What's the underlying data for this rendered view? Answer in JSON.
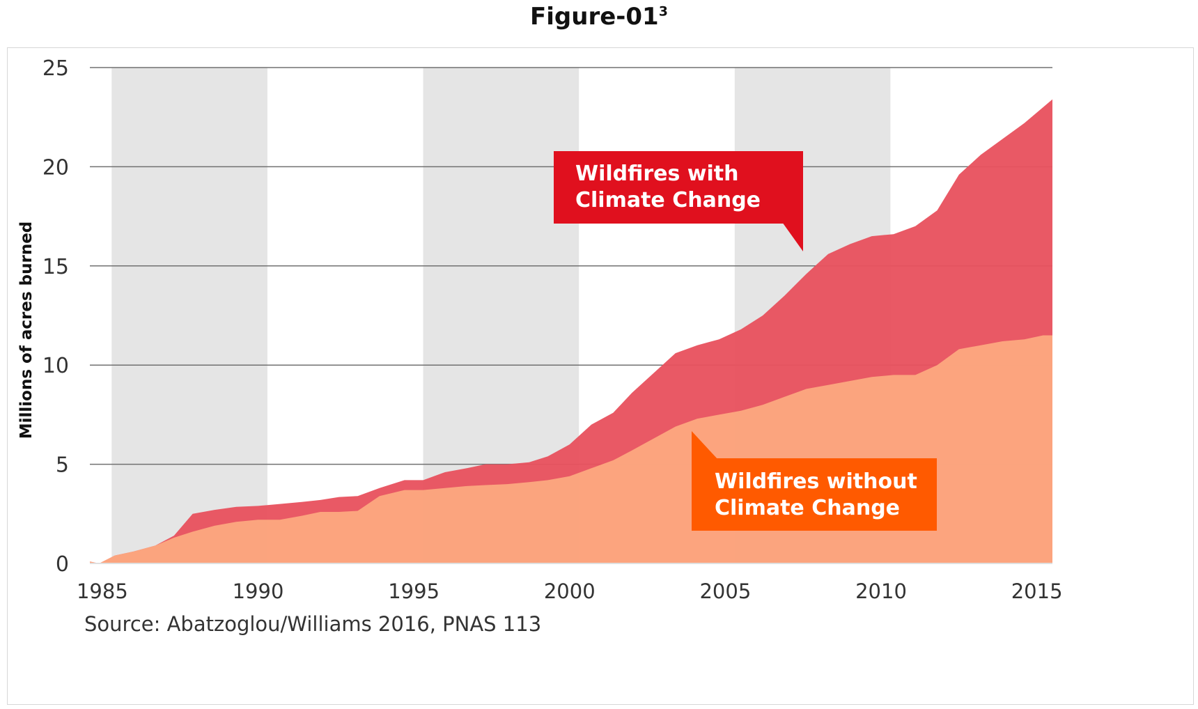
{
  "figure": {
    "title": "Figure-01",
    "superscript": "3"
  },
  "chart_data": {
    "type": "area",
    "ylabel": "Millions of acres burned",
    "xlabel": "",
    "source": "Source: Abatzoglou/Williams 2016, PNAS 113",
    "xlim": [
      1984.6,
      2015.5
    ],
    "ylim": [
      0,
      25
    ],
    "x_ticks": [
      1985,
      1990,
      1995,
      2000,
      2005,
      2010,
      2015
    ],
    "y_ticks": [
      0,
      5,
      10,
      15,
      20,
      25
    ],
    "grid": true,
    "shaded_bands": [
      [
        1985.3,
        1990.3
      ],
      [
        1995.3,
        2000.3
      ],
      [
        2005.3,
        2010.3
      ]
    ],
    "series": [
      {
        "name": "Wildfires with Climate Change",
        "color": "#e8525f",
        "x": [
          1984.6,
          1984.9,
          1985.4,
          1986.0,
          1986.7,
          1987.3,
          1987.9,
          1988.6,
          1989.3,
          1990.0,
          1990.7,
          1991.4,
          1992.0,
          1992.6,
          1993.2,
          1993.9,
          1994.7,
          1995.3,
          1996.0,
          1996.7,
          1997.3,
          1998.0,
          1998.7,
          1999.3,
          2000.0,
          2000.7,
          2001.4,
          2002.0,
          2002.7,
          2003.4,
          2004.1,
          2004.8,
          2005.5,
          2006.2,
          2006.9,
          2007.6,
          2008.3,
          2009.0,
          2009.7,
          2010.4,
          2011.1,
          2011.8,
          2012.5,
          2013.2,
          2013.9,
          2014.6,
          2015.2,
          2015.5
        ],
        "values": [
          0.1,
          0.0,
          0.4,
          0.6,
          0.9,
          1.4,
          2.5,
          2.7,
          2.85,
          2.9,
          3.0,
          3.1,
          3.2,
          3.35,
          3.4,
          3.8,
          4.2,
          4.2,
          4.6,
          4.8,
          5.0,
          5.0,
          5.1,
          5.4,
          6.0,
          7.0,
          7.6,
          8.6,
          9.6,
          10.6,
          11.0,
          11.3,
          11.8,
          12.5,
          13.5,
          14.6,
          15.6,
          16.1,
          16.5,
          16.6,
          17.0,
          17.8,
          19.6,
          20.6,
          21.4,
          22.2,
          23.0,
          23.4
        ]
      },
      {
        "name": "Wildfires without Climate Change",
        "color": "#fca87f",
        "x": [
          1984.6,
          1984.9,
          1985.4,
          1986.0,
          1986.7,
          1987.3,
          1987.9,
          1988.6,
          1989.3,
          1990.0,
          1990.7,
          1991.4,
          1992.0,
          1992.6,
          1993.2,
          1993.9,
          1994.7,
          1995.3,
          1996.0,
          1996.7,
          1997.3,
          1998.0,
          1998.7,
          1999.3,
          2000.0,
          2000.7,
          2001.4,
          2002.0,
          2002.7,
          2003.4,
          2004.1,
          2004.8,
          2005.5,
          2006.2,
          2006.9,
          2007.6,
          2008.3,
          2009.0,
          2009.7,
          2010.4,
          2011.1,
          2011.8,
          2012.5,
          2013.2,
          2013.9,
          2014.6,
          2015.2,
          2015.5
        ],
        "values": [
          0.1,
          0.0,
          0.4,
          0.6,
          0.9,
          1.3,
          1.6,
          1.9,
          2.1,
          2.2,
          2.2,
          2.4,
          2.6,
          2.6,
          2.65,
          3.4,
          3.7,
          3.7,
          3.8,
          3.9,
          3.95,
          4.0,
          4.1,
          4.2,
          4.4,
          4.8,
          5.2,
          5.7,
          6.3,
          6.9,
          7.3,
          7.5,
          7.7,
          8.0,
          8.4,
          8.8,
          9.0,
          9.2,
          9.4,
          9.5,
          9.5,
          10.0,
          10.8,
          11.0,
          11.2,
          11.3,
          11.5,
          11.5
        ]
      }
    ],
    "annotations": [
      {
        "series": "Wildfires with Climate Change",
        "lines": [
          "Wildfires with",
          "Climate Change"
        ],
        "color": "#e0101e"
      },
      {
        "series": "Wildfires without Climate Change",
        "lines": [
          "Wildfires without",
          "Climate Change"
        ],
        "color": "#ff5a00"
      }
    ]
  }
}
